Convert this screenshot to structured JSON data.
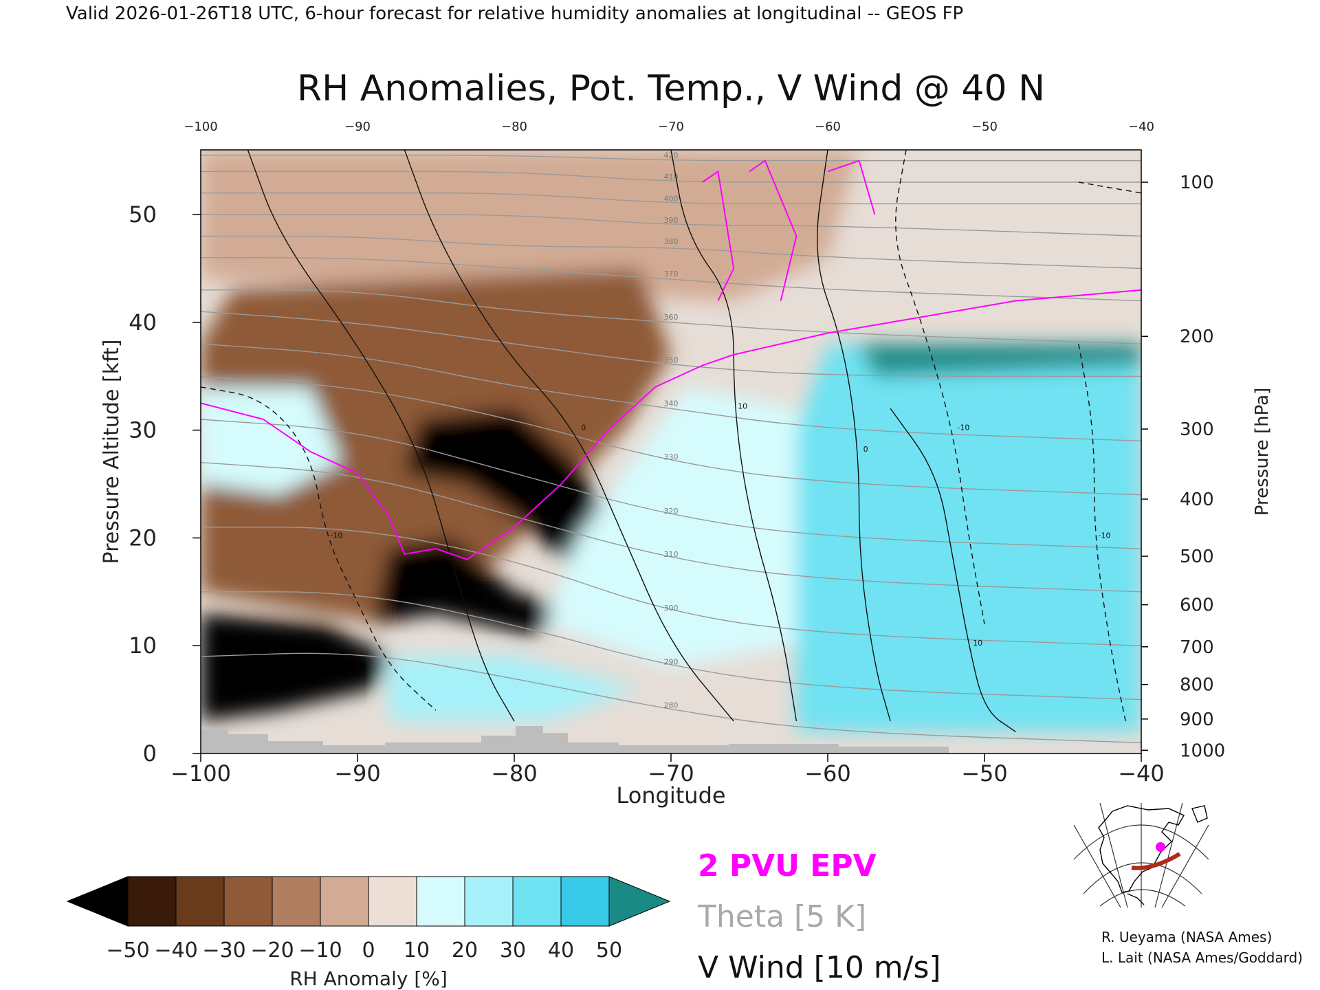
{
  "header": {
    "valid_text": "Valid 2026-01-26T18 UTC, 6-hour forecast for relative humidity anomalies at longitudinal -- GEOS FP",
    "title": "RH Anomalies, Pot. Temp., V Wind @ 40 N"
  },
  "legend": {
    "epv_label": "2 PVU EPV",
    "theta_label": "Theta [5 K]",
    "vwind_label": "V Wind [10 m/s]"
  },
  "colorbar": {
    "label": "RH Anomaly [%]",
    "ticks": [
      "−50",
      "−40",
      "−30",
      "−20",
      "−10",
      "0",
      "10",
      "20",
      "30",
      "40",
      "50"
    ],
    "colors": [
      "#3a1a08",
      "#6a3a1c",
      "#8e5a38",
      "#b07e60",
      "#d2ab94",
      "#eedfd6",
      "#d6fbfd",
      "#a6f1f9",
      "#6fe2f2",
      "#38c9e8",
      "#169fbf"
    ],
    "under_color": "#000000",
    "over_color": "#1a8a85"
  },
  "credits": {
    "line1": "R. Ueyama (NASA Ames)",
    "line2": "L. Lait (NASA Ames/Goddard)"
  },
  "chart_data": {
    "type": "heatmap",
    "title": "RH Anomalies, Pot. Temp., V Wind @ 40 N",
    "xlabel": "Longitude",
    "ylabel": "Pressure Altitude [kft]",
    "y2label": "Pressure [hPa]",
    "xlim": [
      -100,
      -40
    ],
    "ylim": [
      0,
      56
    ],
    "x_ticks": [
      -100,
      -90,
      -80,
      -70,
      -60,
      -50,
      -40
    ],
    "x_tick_labels": [
      "−100",
      "−90",
      "−80",
      "−70",
      "−60",
      "−50",
      "−40"
    ],
    "x_top_tick_labels": [
      "−100",
      "−90",
      "−80",
      "−70",
      "−60",
      "−50",
      "−40"
    ],
    "y_ticks": [
      0,
      10,
      20,
      30,
      40,
      50
    ],
    "pressure_ticks": [
      {
        "label": "100",
        "kft": 53.0
      },
      {
        "label": "200",
        "kft": 38.7
      },
      {
        "label": "300",
        "kft": 30.1
      },
      {
        "label": "400",
        "kft": 23.6
      },
      {
        "label": "500",
        "kft": 18.3
      },
      {
        "label": "600",
        "kft": 13.8
      },
      {
        "label": "700",
        "kft": 9.9
      },
      {
        "label": "800",
        "kft": 6.4
      },
      {
        "label": "900",
        "kft": 3.2
      },
      {
        "label": "1000",
        "kft": 0.3
      }
    ],
    "rh_regions": [
      {
        "level": -10,
        "pts": [
          [
            -100,
            56
          ],
          [
            -58,
            56
          ],
          [
            -60,
            46
          ],
          [
            -66,
            42
          ],
          [
            -100,
            44
          ]
        ]
      },
      {
        "level": -30,
        "pts": [
          [
            -98,
            43
          ],
          [
            -72,
            45
          ],
          [
            -70,
            37
          ],
          [
            -73,
            30
          ],
          [
            -81,
            18
          ],
          [
            -88,
            12
          ],
          [
            -100,
            15
          ],
          [
            -100,
            38
          ]
        ]
      },
      {
        "level": -50,
        "pts": [
          [
            -86,
            31
          ],
          [
            -80,
            32
          ],
          [
            -76,
            27
          ],
          [
            -73,
            19
          ],
          [
            -76,
            17
          ],
          [
            -80,
            22
          ],
          [
            -83,
            25
          ],
          [
            -87,
            26
          ]
        ]
      },
      {
        "level": -50,
        "pts": [
          [
            -88,
            19
          ],
          [
            -84,
            20
          ],
          [
            -80,
            15
          ],
          [
            -76,
            13
          ],
          [
            -79,
            11
          ],
          [
            -85,
            13
          ],
          [
            -89,
            12
          ]
        ]
      },
      {
        "level": -50,
        "pts": [
          [
            -100,
            13
          ],
          [
            -92,
            12
          ],
          [
            -88,
            9
          ],
          [
            -89,
            6
          ],
          [
            -95,
            4
          ],
          [
            -100,
            3
          ]
        ]
      },
      {
        "level": 10,
        "pts": [
          [
            -69,
            34
          ],
          [
            -62,
            32
          ],
          [
            -61,
            20
          ],
          [
            -62,
            10
          ],
          [
            -70,
            8
          ],
          [
            -78,
            12
          ],
          [
            -76,
            20
          ]
        ]
      },
      {
        "level": 30,
        "pts": [
          [
            -60,
            38
          ],
          [
            -40,
            38
          ],
          [
            -40,
            2
          ],
          [
            -62,
            2
          ],
          [
            -62,
            30
          ]
        ]
      },
      {
        "level": 50,
        "pts": [
          [
            -57,
            35
          ],
          [
            -40,
            36
          ],
          [
            -40,
            38
          ],
          [
            -58,
            38
          ]
        ]
      },
      {
        "level": 10,
        "pts": [
          [
            -100,
            34
          ],
          [
            -93,
            34
          ],
          [
            -91,
            27
          ],
          [
            -95,
            24
          ],
          [
            -100,
            25
          ]
        ]
      },
      {
        "level": 20,
        "pts": [
          [
            -88,
            9
          ],
          [
            -80,
            9
          ],
          [
            -72,
            6
          ],
          [
            -78,
            3
          ],
          [
            -88,
            3
          ]
        ]
      }
    ],
    "theta_contours": [
      {
        "value": 280,
        "pts": [
          [
            -100,
            9
          ],
          [
            -90,
            9.5
          ],
          [
            -80,
            7
          ],
          [
            -70,
            4
          ],
          [
            -60,
            2
          ],
          [
            -40,
            1
          ]
        ]
      },
      {
        "value": 290,
        "pts": [
          [
            -100,
            15
          ],
          [
            -90,
            15
          ],
          [
            -80,
            12
          ],
          [
            -70,
            8
          ],
          [
            -60,
            6
          ],
          [
            -40,
            5
          ]
        ]
      },
      {
        "value": 300,
        "pts": [
          [
            -100,
            21
          ],
          [
            -90,
            21
          ],
          [
            -80,
            18
          ],
          [
            -70,
            13
          ],
          [
            -60,
            11
          ],
          [
            -40,
            10
          ]
        ]
      },
      {
        "value": 310,
        "pts": [
          [
            -100,
            27
          ],
          [
            -90,
            26
          ],
          [
            -80,
            22
          ],
          [
            -70,
            18
          ],
          [
            -60,
            16
          ],
          [
            -40,
            15
          ]
        ]
      },
      {
        "value": 320,
        "pts": [
          [
            -100,
            31
          ],
          [
            -90,
            30
          ],
          [
            -80,
            26
          ],
          [
            -70,
            22
          ],
          [
            -60,
            20
          ],
          [
            -40,
            19
          ]
        ]
      },
      {
        "value": 330,
        "pts": [
          [
            -100,
            35
          ],
          [
            -90,
            34
          ],
          [
            -80,
            31
          ],
          [
            -70,
            27
          ],
          [
            -60,
            25
          ],
          [
            -40,
            24
          ]
        ]
      },
      {
        "value": 340,
        "pts": [
          [
            -100,
            38
          ],
          [
            -90,
            37
          ],
          [
            -80,
            34
          ],
          [
            -70,
            32
          ],
          [
            -60,
            30
          ],
          [
            -40,
            29
          ]
        ]
      },
      {
        "value": 350,
        "pts": [
          [
            -100,
            41
          ],
          [
            -90,
            40
          ],
          [
            -80,
            38
          ],
          [
            -70,
            36
          ],
          [
            -60,
            35
          ],
          [
            -40,
            35
          ]
        ]
      },
      {
        "value": 360,
        "pts": [
          [
            -100,
            43
          ],
          [
            -90,
            43
          ],
          [
            -80,
            41
          ],
          [
            -70,
            40
          ],
          [
            -60,
            39
          ],
          [
            -40,
            38
          ]
        ]
      },
      {
        "value": 370,
        "pts": [
          [
            -100,
            46
          ],
          [
            -90,
            46
          ],
          [
            -80,
            45
          ],
          [
            -70,
            44
          ],
          [
            -60,
            43
          ],
          [
            -40,
            42
          ]
        ]
      },
      {
        "value": 380,
        "pts": [
          [
            -100,
            48
          ],
          [
            -90,
            48
          ],
          [
            -80,
            47
          ],
          [
            -70,
            47
          ],
          [
            -60,
            46
          ],
          [
            -40,
            45
          ]
        ]
      },
      {
        "value": 390,
        "pts": [
          [
            -100,
            50
          ],
          [
            -90,
            50
          ],
          [
            -80,
            50
          ],
          [
            -70,
            49
          ],
          [
            -60,
            49
          ],
          [
            -40,
            48
          ]
        ]
      },
      {
        "value": 400,
        "pts": [
          [
            -100,
            52
          ],
          [
            -90,
            52
          ],
          [
            -80,
            52
          ],
          [
            -70,
            51
          ],
          [
            -60,
            51
          ],
          [
            -40,
            51
          ]
        ]
      },
      {
        "value": 410,
        "pts": [
          [
            -100,
            54
          ],
          [
            -90,
            54
          ],
          [
            -80,
            54
          ],
          [
            -70,
            53
          ],
          [
            -60,
            53
          ],
          [
            -40,
            53
          ]
        ]
      },
      {
        "value": 420,
        "pts": [
          [
            -100,
            55.5
          ],
          [
            -90,
            55.5
          ],
          [
            -80,
            55.5
          ],
          [
            -70,
            55
          ],
          [
            -60,
            55
          ],
          [
            -40,
            55
          ]
        ]
      }
    ],
    "vwind_contours": [
      {
        "value": 0,
        "dashed": false,
        "pts": [
          [
            -97,
            56
          ],
          [
            -95,
            48
          ],
          [
            -90,
            38
          ],
          [
            -86,
            28
          ],
          [
            -84,
            18
          ],
          [
            -82,
            8
          ],
          [
            -80,
            3
          ]
        ]
      },
      {
        "value": 0,
        "dashed": false,
        "pts": [
          [
            -87,
            56
          ],
          [
            -85,
            48
          ],
          [
            -81,
            38
          ],
          [
            -76,
            30
          ],
          [
            -73,
            20
          ],
          [
            -70,
            10
          ],
          [
            -66,
            3
          ]
        ]
      },
      {
        "value": 10,
        "dashed": false,
        "pts": [
          [
            -70,
            56
          ],
          [
            -69,
            48
          ],
          [
            -66,
            42
          ],
          [
            -66,
            32
          ],
          [
            -65,
            22
          ],
          [
            -63,
            12
          ],
          [
            -62,
            3
          ]
        ]
      },
      {
        "value": 0,
        "dashed": false,
        "pts": [
          [
            -60,
            56
          ],
          [
            -61,
            46
          ],
          [
            -59,
            38
          ],
          [
            -58,
            28
          ],
          [
            -58,
            18
          ],
          [
            -57,
            8
          ],
          [
            -56,
            3
          ]
        ]
      },
      {
        "value": 10,
        "dashed": false,
        "pts": [
          [
            -56,
            32
          ],
          [
            -53,
            26
          ],
          [
            -52,
            18
          ],
          [
            -51,
            10
          ],
          [
            -50,
            4
          ],
          [
            -48,
            2
          ]
        ]
      },
      {
        "value": -10,
        "dashed": true,
        "pts": [
          [
            -100,
            34
          ],
          [
            -96,
            33
          ],
          [
            -93,
            28
          ],
          [
            -92,
            20
          ],
          [
            -90,
            14
          ],
          [
            -88,
            8
          ],
          [
            -85,
            4
          ]
        ]
      },
      {
        "value": -10,
        "dashed": true,
        "pts": [
          [
            -55,
            56
          ],
          [
            -56,
            48
          ],
          [
            -54,
            40
          ],
          [
            -52,
            30
          ],
          [
            -51,
            20
          ],
          [
            -50,
            12
          ]
        ]
      },
      {
        "value": -10,
        "dashed": true,
        "pts": [
          [
            -44,
            53
          ],
          [
            -40,
            52
          ]
        ]
      },
      {
        "value": -10,
        "dashed": true,
        "pts": [
          [
            -44,
            38
          ],
          [
            -43,
            30
          ],
          [
            -43,
            20
          ],
          [
            -42,
            10
          ],
          [
            -41,
            3
          ]
        ]
      }
    ],
    "epv_2pvu": {
      "pts": [
        [
          -100,
          32.5
        ],
        [
          -96,
          31
        ],
        [
          -93,
          28
        ],
        [
          -90,
          26
        ],
        [
          -88,
          22
        ],
        [
          -87,
          18.5
        ],
        [
          -85,
          19
        ],
        [
          -83,
          18
        ],
        [
          -80,
          21
        ],
        [
          -77,
          25
        ],
        [
          -74,
          30
        ],
        [
          -71,
          34
        ],
        [
          -68,
          36
        ],
        [
          -66,
          37
        ],
        [
          -63,
          38
        ],
        [
          -60,
          39
        ],
        [
          -58,
          39.5
        ],
        [
          -56,
          40
        ],
        [
          -52,
          41
        ],
        [
          -48,
          42
        ],
        [
          -44,
          42.5
        ],
        [
          -40,
          43
        ]
      ]
    },
    "epv_spikes": [
      {
        "pts": [
          [
            -68,
            53
          ],
          [
            -67,
            54
          ],
          [
            -66,
            45
          ],
          [
            -67,
            42
          ]
        ]
      },
      {
        "pts": [
          [
            -65,
            54
          ],
          [
            -64,
            55
          ],
          [
            -62,
            48
          ],
          [
            -63,
            42
          ]
        ]
      },
      {
        "pts": [
          [
            -60,
            54
          ],
          [
            -58,
            55
          ],
          [
            -57,
            50
          ]
        ]
      }
    ]
  }
}
